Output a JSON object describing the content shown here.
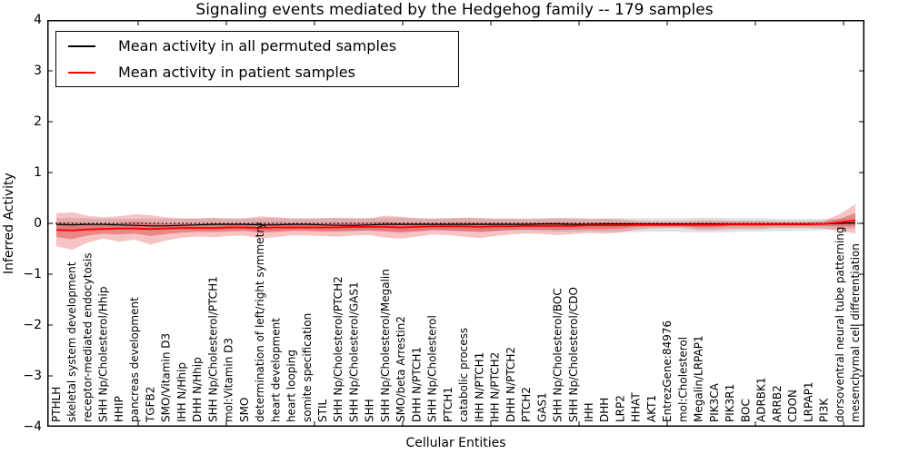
{
  "chart_data": {
    "type": "line",
    "title": "Signaling events mediated by the Hedgehog family -- 179 samples",
    "xlabel": "Cellular Entities",
    "ylabel": "Inferred Activity",
    "ylim": [
      -4,
      4
    ],
    "ytick_labels": [
      "4",
      "3",
      "2",
      "1",
      "0",
      "−1",
      "−2",
      "−3",
      "−4"
    ],
    "grid": false,
    "legend_position": "upper left",
    "zero_line": true,
    "categories": [
      "PTHLH",
      "skeletal system development",
      "receptor-mediated endocytosis",
      "SHH Np/Cholesterol/Hhip",
      "HHIP",
      "pancreas development",
      "TGFB2",
      "SMO/Vitamin D3",
      "IHH N/Hhip",
      "DHH N/Hhip",
      "SHH Np/Cholesterol/PTCH1",
      "mol:Vitamin D3",
      "SMO",
      "determination of left/right symmetry",
      "heart development",
      "heart looping",
      "somite specification",
      "STIL",
      "SHH Np/Cholesterol/PTCH2",
      "SHH Np/Cholesterol/GAS1",
      "SHH",
      "SHH Np/Cholesterol/Megalin",
      "SMO/beta Arrestin2",
      "DHH N/PTCH1",
      "SHH Np/Cholesterol",
      "PTCH1",
      "catabolic process",
      "IHH N/PTCH1",
      "IHH N/PTCH2",
      "DHH N/PTCH2",
      "PTCH2",
      "GAS1",
      "SHH Np/Cholesterol/BOC",
      "SHH Np/Cholesterol/CDO",
      "IHH",
      "DHH",
      "LRP2",
      "HHAT",
      "AKT1",
      "EntrezGene:84976",
      "mol:Cholesterol",
      "Megalin/LRPAP1",
      "PIK3CA",
      "PIK3R1",
      "BOC",
      "ADRBK1",
      "ARRB2",
      "CDON",
      "LRPAP1",
      "PI3K",
      "dorsoventral neural tube patterning",
      "mesenchymal cell differentiation"
    ],
    "series": [
      {
        "name": "Mean activity in all permuted samples",
        "color": "#000000",
        "width": 1.2,
        "values": [
          -0.02,
          -0.03,
          -0.02,
          -0.02,
          -0.03,
          -0.04,
          -0.05,
          -0.05,
          -0.04,
          -0.03,
          -0.02,
          -0.02,
          -0.02,
          -0.03,
          -0.03,
          -0.02,
          -0.02,
          -0.03,
          -0.04,
          -0.04,
          -0.03,
          -0.02,
          -0.02,
          -0.02,
          -0.02,
          -0.02,
          -0.02,
          -0.02,
          -0.02,
          -0.02,
          -0.02,
          -0.01,
          -0.01,
          -0.02,
          -0.02,
          -0.01,
          -0.01,
          -0.01,
          -0.01,
          -0.01,
          -0.01,
          -0.01,
          -0.01,
          -0.01,
          -0.01,
          -0.01,
          -0.01,
          -0.01,
          -0.01,
          -0.01,
          0.0,
          0.01
        ]
      },
      {
        "name": "Mean activity in patient samples",
        "color": "#ff0000",
        "width": 1.8,
        "values": [
          -0.13,
          -0.14,
          -0.12,
          -0.11,
          -0.1,
          -0.1,
          -0.11,
          -0.1,
          -0.09,
          -0.09,
          -0.09,
          -0.08,
          -0.08,
          -0.09,
          -0.08,
          -0.08,
          -0.08,
          -0.08,
          -0.08,
          -0.07,
          -0.07,
          -0.07,
          -0.08,
          -0.07,
          -0.06,
          -0.06,
          -0.06,
          -0.07,
          -0.06,
          -0.06,
          -0.05,
          -0.05,
          -0.05,
          -0.05,
          -0.04,
          -0.04,
          -0.04,
          -0.03,
          -0.03,
          -0.03,
          -0.03,
          -0.03,
          -0.03,
          -0.02,
          -0.02,
          -0.02,
          -0.02,
          -0.02,
          -0.02,
          -0.01,
          0.02,
          0.06
        ]
      }
    ],
    "bands": [
      {
        "name": "permuted samples range",
        "color": "#999999",
        "opacity": 0.3,
        "upper": [
          0.1,
          0.11,
          0.1,
          0.09,
          0.09,
          0.09,
          0.1,
          0.09,
          0.09,
          0.09,
          0.1,
          0.09,
          0.09,
          0.1,
          0.1,
          0.09,
          0.09,
          0.1,
          0.1,
          0.1,
          0.1,
          0.11,
          0.11,
          0.1,
          0.1,
          0.1,
          0.11,
          0.11,
          0.1,
          0.1,
          0.1,
          0.1,
          0.11,
          0.11,
          0.1,
          0.1,
          0.1,
          0.1,
          0.1,
          0.1,
          0.1,
          0.11,
          0.11,
          0.1,
          0.1,
          0.1,
          0.09,
          0.09,
          0.09,
          0.09,
          0.09,
          0.08
        ],
        "lower": [
          -0.14,
          -0.15,
          -0.14,
          -0.13,
          -0.13,
          -0.13,
          -0.14,
          -0.13,
          -0.13,
          -0.13,
          -0.14,
          -0.13,
          -0.13,
          -0.15,
          -0.14,
          -0.13,
          -0.13,
          -0.14,
          -0.15,
          -0.14,
          -0.14,
          -0.15,
          -0.16,
          -0.15,
          -0.14,
          -0.14,
          -0.16,
          -0.16,
          -0.15,
          -0.14,
          -0.14,
          -0.15,
          -0.16,
          -0.16,
          -0.15,
          -0.16,
          -0.17,
          -0.17,
          -0.16,
          -0.16,
          -0.17,
          -0.18,
          -0.18,
          -0.17,
          -0.16,
          -0.16,
          -0.15,
          -0.15,
          -0.14,
          -0.13,
          -0.12,
          -0.1
        ]
      },
      {
        "name": "patient samples outer range",
        "color": "#dd2c2c",
        "opacity": 0.28,
        "upper": [
          0.2,
          0.22,
          0.15,
          0.12,
          0.14,
          0.18,
          0.16,
          0.12,
          0.1,
          0.1,
          0.11,
          0.1,
          0.1,
          0.14,
          0.12,
          0.1,
          0.1,
          0.1,
          0.11,
          0.1,
          0.1,
          0.15,
          0.13,
          0.1,
          0.09,
          0.1,
          0.11,
          0.1,
          0.09,
          0.09,
          0.08,
          0.09,
          0.1,
          0.09,
          0.08,
          0.09,
          0.08,
          0.05,
          0.04,
          0.04,
          0.04,
          0.06,
          0.06,
          0.05,
          0.05,
          0.05,
          0.04,
          0.04,
          0.04,
          0.05,
          0.18,
          0.38
        ],
        "lower": [
          -0.45,
          -0.52,
          -0.38,
          -0.3,
          -0.36,
          -0.32,
          -0.42,
          -0.34,
          -0.28,
          -0.26,
          -0.27,
          -0.25,
          -0.24,
          -0.3,
          -0.27,
          -0.24,
          -0.24,
          -0.25,
          -0.26,
          -0.24,
          -0.23,
          -0.28,
          -0.3,
          -0.26,
          -0.22,
          -0.23,
          -0.26,
          -0.29,
          -0.25,
          -0.22,
          -0.2,
          -0.21,
          -0.23,
          -0.21,
          -0.19,
          -0.2,
          -0.18,
          -0.12,
          -0.1,
          -0.09,
          -0.09,
          -0.13,
          -0.13,
          -0.11,
          -0.11,
          -0.11,
          -0.09,
          -0.09,
          -0.09,
          -0.1,
          -0.15,
          -0.2
        ]
      },
      {
        "name": "patient samples inner range",
        "color": "#dd2c2c",
        "opacity": 0.4,
        "upper": [
          0.02,
          0.02,
          0.0,
          -0.01,
          0.01,
          0.03,
          0.01,
          0.0,
          0.0,
          0.0,
          0.0,
          0.0,
          0.0,
          0.01,
          0.01,
          0.0,
          0.0,
          0.0,
          0.01,
          0.01,
          0.01,
          0.03,
          0.01,
          0.01,
          0.01,
          0.01,
          0.02,
          0.01,
          0.01,
          0.01,
          0.01,
          0.01,
          0.02,
          0.01,
          0.01,
          0.02,
          0.01,
          0.01,
          0.0,
          0.0,
          0.0,
          0.01,
          0.01,
          0.01,
          0.01,
          0.01,
          0.01,
          0.01,
          0.01,
          0.02,
          0.09,
          0.2
        ],
        "lower": [
          -0.27,
          -0.31,
          -0.24,
          -0.2,
          -0.22,
          -0.2,
          -0.25,
          -0.21,
          -0.18,
          -0.17,
          -0.17,
          -0.16,
          -0.15,
          -0.18,
          -0.17,
          -0.15,
          -0.15,
          -0.16,
          -0.16,
          -0.15,
          -0.14,
          -0.16,
          -0.18,
          -0.16,
          -0.13,
          -0.14,
          -0.15,
          -0.17,
          -0.15,
          -0.13,
          -0.12,
          -0.12,
          -0.13,
          -0.12,
          -0.11,
          -0.11,
          -0.1,
          -0.07,
          -0.06,
          -0.06,
          -0.06,
          -0.08,
          -0.08,
          -0.06,
          -0.06,
          -0.06,
          -0.05,
          -0.05,
          -0.05,
          -0.05,
          -0.06,
          -0.06
        ]
      }
    ]
  }
}
